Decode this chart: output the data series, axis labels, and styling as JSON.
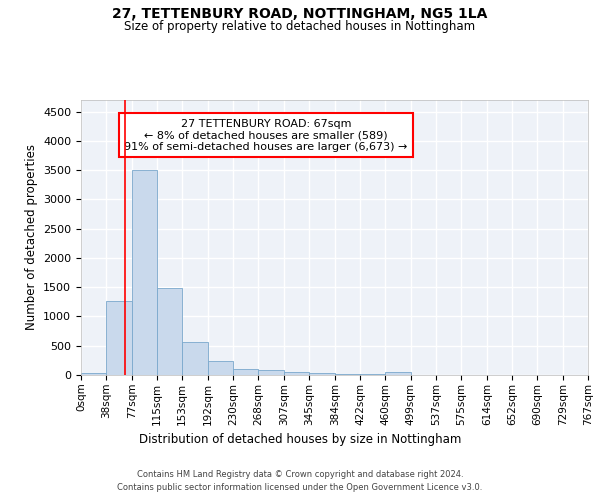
{
  "title": "27, TETTENBURY ROAD, NOTTINGHAM, NG5 1LA",
  "subtitle": "Size of property relative to detached houses in Nottingham",
  "xlabel": "Distribution of detached houses by size in Nottingham",
  "ylabel": "Number of detached properties",
  "bar_color": "#c9d9ec",
  "bar_edge_color": "#7aa8cc",
  "background_color": "#eef2f8",
  "grid_color": "#ffffff",
  "bin_edges": [
    0,
    38,
    77,
    115,
    153,
    192,
    230,
    268,
    307,
    345,
    384,
    422,
    460,
    499,
    537,
    575,
    614,
    652,
    690,
    729,
    767
  ],
  "bin_labels": [
    "0sqm",
    "38sqm",
    "77sqm",
    "115sqm",
    "153sqm",
    "192sqm",
    "230sqm",
    "268sqm",
    "307sqm",
    "345sqm",
    "384sqm",
    "422sqm",
    "460sqm",
    "499sqm",
    "537sqm",
    "575sqm",
    "614sqm",
    "652sqm",
    "690sqm",
    "729sqm",
    "767sqm"
  ],
  "bar_heights": [
    40,
    1270,
    3500,
    1480,
    570,
    240,
    110,
    80,
    50,
    30,
    15,
    10,
    50,
    5,
    0,
    0,
    0,
    0,
    0,
    0
  ],
  "vline_x": 67,
  "annotation_text": "27 TETTENBURY ROAD: 67sqm\n← 8% of detached houses are smaller (589)\n91% of semi-detached houses are larger (6,673) →",
  "annotation_box_color": "white",
  "annotation_box_edge": "red",
  "vline_color": "red",
  "ylim": [
    0,
    4700
  ],
  "yticks": [
    0,
    500,
    1000,
    1500,
    2000,
    2500,
    3000,
    3500,
    4000,
    4500
  ],
  "footer_line1": "Contains HM Land Registry data © Crown copyright and database right 2024.",
  "footer_line2": "Contains public sector information licensed under the Open Government Licence v3.0."
}
